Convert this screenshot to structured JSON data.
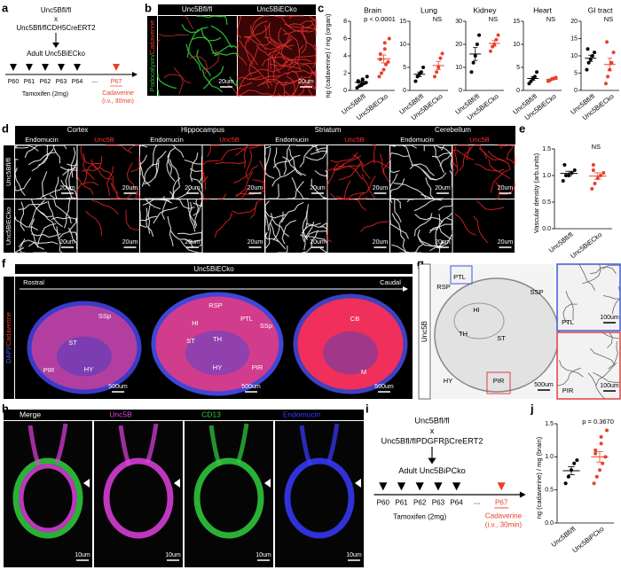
{
  "panel_letters": [
    "a",
    "b",
    "c",
    "d",
    "e",
    "f",
    "g",
    "h",
    "i",
    "j"
  ],
  "a": {
    "parent1": "Unc5Bfl/fl",
    "cross": "x",
    "parent2": "Unc5Bfl/flCDH5CreERT2",
    "offspring": "Adult Unc5BiECko",
    "days": [
      "P60",
      "P61",
      "P62",
      "P63",
      "P64"
    ],
    "ellipsis": "...",
    "final_day": "P67",
    "tamoxifen": "Tamoxifen (2mg)",
    "cadaverine": [
      "Cadaverine",
      "(i.v., 30min)"
    ]
  },
  "b": {
    "ylabel": [
      "Podocalyxin/",
      "Cadaverine"
    ],
    "columns": [
      "Unc5Bfl/fl",
      "Unc5BiECko"
    ],
    "scale": "20um"
  },
  "d": {
    "regions": [
      "Cortex",
      "Hippocampus",
      "Striatum",
      "Cerebellum"
    ],
    "stains": [
      "Endomucin",
      "Unc5B"
    ],
    "rows": [
      "Unc5Bfl/fl",
      "Unc5BiECko"
    ],
    "scale": "20um"
  },
  "f": {
    "title": "Unc5BiECko",
    "rostral": "Rostral",
    "caudal": "Caudal",
    "ylabel": [
      "DAPI/",
      "Cadaverine"
    ],
    "sections": [
      {
        "labels": [
          "SSp",
          "ST",
          "PIR",
          "HY"
        ]
      },
      {
        "labels": [
          "RSP",
          "HI",
          "PTL",
          "SSp",
          "ST",
          "TH",
          "HY",
          "PIR"
        ]
      },
      {
        "labels": [
          "CB",
          "M"
        ]
      }
    ],
    "scale": "500um"
  },
  "g": {
    "ylabel": "Unc5B",
    "labels": [
      "RSP",
      "PTL",
      "SSP",
      "HI",
      "TH",
      "ST",
      "HY",
      "PIR"
    ],
    "scale": "500um",
    "insets": [
      {
        "label": "PTL",
        "scale": "100um"
      },
      {
        "label": "PIR",
        "scale": "100um"
      }
    ]
  },
  "h": {
    "channels": [
      "Merge",
      "Unc5B",
      "CD13",
      "Endomucin"
    ],
    "scale": "10um"
  },
  "i": {
    "parent1": "Unc5Bfl/fl",
    "cross": "x",
    "parent2": "Unc5Bfl/flPDGFRβCreERT2",
    "offspring": "Adult Unc5BiPCko",
    "days": [
      "P60",
      "P61",
      "P62",
      "P63",
      "P64"
    ],
    "ellipsis": "...",
    "final_day": "P67",
    "tamoxifen": "Tamoxifen (2mg)",
    "cadaverine": [
      "Cadaverine",
      "(i.v., 30min)"
    ]
  },
  "chart_data": [
    {
      "type": "strip",
      "title": "Brain",
      "ylabel": "ng (cadaverine) / mg (organ)",
      "categories": [
        "Unc5Bfl/fl",
        "Unc5BiECko"
      ],
      "groups": [
        {
          "color": "#000000",
          "values": [
            0.3,
            0.5,
            0.6,
            0.8,
            0.9,
            1.0,
            1.1,
            1.2,
            1.3,
            1.6
          ],
          "mean": 0.93,
          "sem": 0.12
        },
        {
          "color": "#e8402a",
          "values": [
            1.6,
            2.0,
            2.4,
            3.0,
            3.3,
            3.6,
            4.2,
            4.8,
            5.5,
            6.0
          ],
          "mean": 3.64,
          "sem": 0.46
        }
      ],
      "ylim": [
        0,
        8
      ],
      "yticks": [
        0,
        2,
        4,
        6,
        8
      ],
      "annotation": "p < 0.0001"
    },
    {
      "type": "strip",
      "title": "Lung",
      "categories": [
        "Unc5Bfl/fl",
        "Unc5BiECko"
      ],
      "groups": [
        {
          "color": "#000000",
          "values": [
            2,
            3,
            3.5,
            4,
            5
          ],
          "mean": 3.5,
          "sem": 0.5
        },
        {
          "color": "#e8402a",
          "values": [
            3,
            4,
            5,
            7,
            8
          ],
          "mean": 5.4,
          "sem": 0.9
        }
      ],
      "ylim": [
        0,
        15
      ],
      "yticks": [
        0,
        5,
        10,
        15
      ],
      "annotation": "NS"
    },
    {
      "type": "strip",
      "title": "Kidney",
      "categories": [
        "Unc5Bfl/fl",
        "Unc5BiECko"
      ],
      "groups": [
        {
          "color": "#000000",
          "values": [
            8,
            12,
            15,
            20,
            24
          ],
          "mean": 15.8,
          "sem": 2.8
        },
        {
          "color": "#e8402a",
          "values": [
            17,
            19,
            20,
            22,
            24
          ],
          "mean": 20.4,
          "sem": 1.2
        }
      ],
      "ylim": [
        0,
        30
      ],
      "yticks": [
        0,
        10,
        20,
        30
      ],
      "annotation": "NS"
    },
    {
      "type": "strip",
      "title": "Heart",
      "categories": [
        "Unc5Bfl/fl",
        "Unc5BiECko"
      ],
      "groups": [
        {
          "color": "#000000",
          "values": [
            1.5,
            2,
            2.5,
            3,
            4
          ],
          "mean": 2.6,
          "sem": 0.4
        },
        {
          "color": "#e8402a",
          "values": [
            2,
            2.2,
            2.5,
            2.6,
            2.8
          ],
          "mean": 2.4,
          "sem": 0.15
        }
      ],
      "ylim": [
        0,
        15
      ],
      "yticks": [
        0,
        5,
        10,
        15
      ],
      "annotation": "NS"
    },
    {
      "type": "strip",
      "title": "GI tract",
      "categories": [
        "Unc5Bfl/fl",
        "Unc5BiECko"
      ],
      "groups": [
        {
          "color": "#000000",
          "values": [
            6,
            8,
            9,
            10,
            11,
            12
          ],
          "mean": 9.3,
          "sem": 0.9
        },
        {
          "color": "#e8402a",
          "values": [
            2,
            4,
            6,
            8,
            11,
            14
          ],
          "mean": 7.5,
          "sem": 1.8
        }
      ],
      "ylim": [
        0,
        20
      ],
      "yticks": [
        0,
        5,
        10,
        15,
        20
      ],
      "annotation": "NS"
    },
    {
      "type": "strip",
      "ylabel": "Vascular density (arb.units)",
      "categories": [
        "Unc5Bfl/fl",
        "Unc5BiECko"
      ],
      "groups": [
        {
          "color": "#000000",
          "values": [
            0.9,
            1.0,
            1.0,
            1.05,
            1.1,
            1.2
          ],
          "mean": 1.04,
          "sem": 0.04
        },
        {
          "color": "#e8402a",
          "values": [
            0.75,
            0.85,
            0.95,
            1.0,
            1.05,
            1.1,
            1.2
          ],
          "mean": 0.99,
          "sem": 0.06
        }
      ],
      "ylim": [
        0,
        1.5
      ],
      "yticks": [
        {
          "value": 0,
          "label": "0.0"
        },
        0.5,
        {
          "value": 1,
          "label": "1.0"
        },
        1.5
      ],
      "annotation": "NS"
    },
    {
      "type": "strip",
      "ylabel": "ng (cadaverine) / mg (brain)",
      "categories": [
        "Unc5Bfl/fl",
        "Unc5BiPCko"
      ],
      "groups": [
        {
          "color": "#000000",
          "values": [
            0.6,
            0.7,
            0.8,
            0.9,
            0.95
          ],
          "mean": 0.79,
          "sem": 0.06
        },
        {
          "color": "#e8402a",
          "values": [
            0.6,
            0.7,
            0.8,
            0.9,
            1.0,
            1.05,
            1.1,
            1.2,
            1.3,
            1.4
          ],
          "mean": 1.0,
          "sem": 0.08
        }
      ],
      "ylim": [
        0,
        1.5
      ],
      "yticks": [
        {
          "value": 0,
          "label": "0.0"
        },
        0.5,
        {
          "value": 1,
          "label": "1.0"
        },
        1.5
      ],
      "annotation": "p = 0.3670"
    }
  ]
}
